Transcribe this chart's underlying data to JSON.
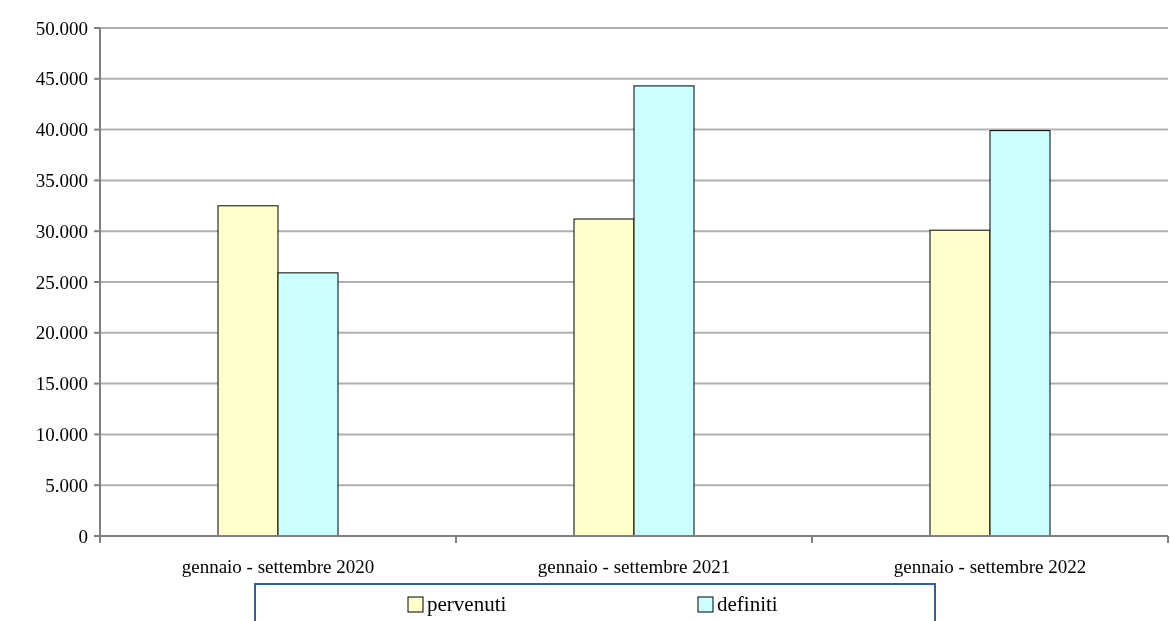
{
  "chart_data": {
    "type": "bar",
    "categories": [
      "gennaio - settembre 2020",
      "gennaio - settembre 2021",
      "gennaio - settembre 2022"
    ],
    "series": [
      {
        "name": "pervenuti",
        "color": "#ffffcc",
        "values": [
          32500,
          31200,
          30100
        ]
      },
      {
        "name": "definiti",
        "color": "#ccffff",
        "values": [
          25900,
          44300,
          39900
        ]
      }
    ],
    "ylim": [
      0,
      50000
    ],
    "yticks": [
      0,
      {
        "value": 5000,
        "label": "5.000"
      },
      {
        "value": 10000,
        "label": "10.000"
      },
      {
        "value": 15000,
        "label": "15.000"
      },
      {
        "value": 20000,
        "label": "20.000"
      },
      {
        "value": 25000,
        "label": "25.000"
      },
      {
        "value": 30000,
        "label": "30.000"
      },
      {
        "value": 35000,
        "label": "35.000"
      },
      {
        "value": 40000,
        "label": "40.000"
      },
      {
        "value": 45000,
        "label": "45.000"
      },
      {
        "value": 50000,
        "label": "50.000"
      }
    ],
    "grid": "y",
    "legend": "bottom"
  }
}
